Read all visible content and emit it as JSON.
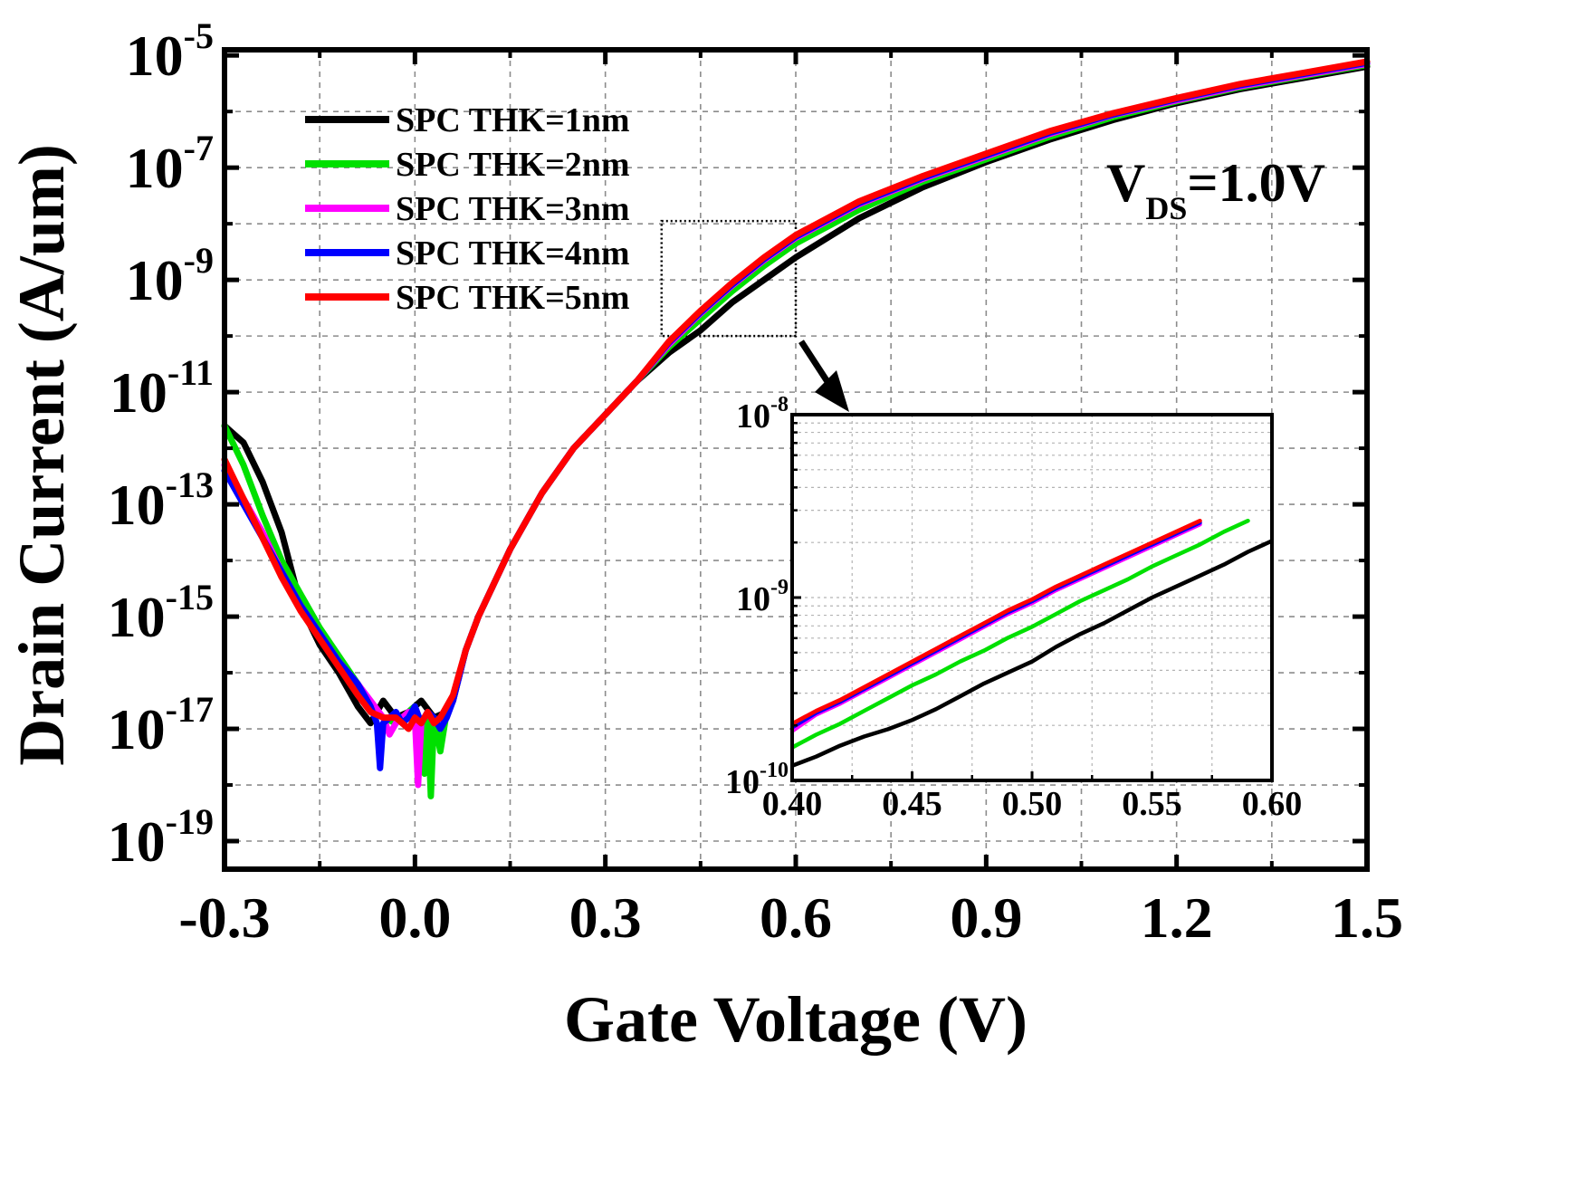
{
  "chart_data": {
    "type": "line",
    "title": "",
    "xlabel": "Gate Voltage (V)",
    "ylabel": "Drain Current (A/um)",
    "xlim": [
      -0.3,
      1.5
    ],
    "ylim_log10": [
      -19.5,
      -4.9
    ],
    "yscale": "log",
    "xticks": [
      "-0.3",
      "0.0",
      "0.3",
      "0.6",
      "0.9",
      "1.2",
      "1.5"
    ],
    "yticks": [
      {
        "base": "10",
        "exp": "-5",
        "log": -5
      },
      {
        "base": "10",
        "exp": "-7",
        "log": -7
      },
      {
        "base": "10",
        "exp": "-9",
        "log": -9
      },
      {
        "base": "10",
        "exp": "-11",
        "log": -11
      },
      {
        "base": "10",
        "exp": "-13",
        "log": -13
      },
      {
        "base": "10",
        "exp": "-15",
        "log": -15
      },
      {
        "base": "10",
        "exp": "-17",
        "log": -17
      },
      {
        "base": "10",
        "exp": "-19",
        "log": -19
      }
    ],
    "annotation": {
      "main": "V",
      "sub": "DS",
      "rest": "=1.0V"
    },
    "legend_position": "top-left",
    "series": [
      {
        "name": "SPC THK=1nm",
        "color": "#000000",
        "x": [
          -0.3,
          -0.27,
          -0.24,
          -0.21,
          -0.18,
          -0.15,
          -0.12,
          -0.09,
          -0.07,
          -0.05,
          -0.03,
          -0.01,
          0.01,
          0.03,
          0.05,
          0.06,
          0.08,
          0.1,
          0.15,
          0.2,
          0.25,
          0.3,
          0.35,
          0.4,
          0.45,
          0.5,
          0.55,
          0.6,
          0.7,
          0.8,
          0.9,
          1.0,
          1.1,
          1.2,
          1.3,
          1.4,
          1.5
        ],
        "y": [
          -11.6,
          -11.9,
          -12.6,
          -13.5,
          -14.8,
          -15.5,
          -16.0,
          -16.6,
          -16.9,
          -16.5,
          -16.8,
          -16.7,
          -16.5,
          -16.8,
          -16.7,
          -16.5,
          -15.6,
          -15.0,
          -13.8,
          -12.8,
          -12.0,
          -11.4,
          -10.8,
          -10.3,
          -9.9,
          -9.4,
          -9.0,
          -8.6,
          -7.9,
          -7.35,
          -6.9,
          -6.5,
          -6.15,
          -5.85,
          -5.6,
          -5.4,
          -5.2
        ]
      },
      {
        "name": "SPC THK=2nm",
        "color": "#00e000",
        "x": [
          -0.3,
          -0.27,
          -0.24,
          -0.21,
          -0.18,
          -0.15,
          -0.12,
          -0.09,
          -0.07,
          -0.05,
          -0.03,
          -0.01,
          0.0,
          0.01,
          0.015,
          0.02,
          0.025,
          0.03,
          0.04,
          0.05,
          0.06,
          0.08,
          0.1,
          0.15,
          0.2,
          0.25,
          0.3,
          0.35,
          0.4,
          0.45,
          0.5,
          0.55,
          0.6,
          0.7,
          0.8,
          0.9,
          1.0,
          1.1,
          1.2,
          1.3,
          1.4,
          1.5
        ],
        "y": [
          -11.6,
          -12.3,
          -13.2,
          -14.0,
          -14.6,
          -15.2,
          -15.7,
          -16.2,
          -16.6,
          -16.8,
          -16.9,
          -16.7,
          -16.6,
          -17.2,
          -17.8,
          -16.7,
          -18.2,
          -16.8,
          -17.4,
          -16.7,
          -16.5,
          -15.6,
          -15.0,
          -13.8,
          -12.8,
          -12.0,
          -11.4,
          -10.8,
          -10.2,
          -9.7,
          -9.2,
          -8.75,
          -8.35,
          -7.75,
          -7.25,
          -6.85,
          -6.45,
          -6.1,
          -5.82,
          -5.57,
          -5.37,
          -5.17
        ]
      },
      {
        "name": "SPC THK=3nm",
        "color": "#ff00ff",
        "x": [
          -0.3,
          -0.27,
          -0.24,
          -0.21,
          -0.18,
          -0.15,
          -0.12,
          -0.09,
          -0.07,
          -0.05,
          -0.04,
          -0.03,
          -0.02,
          -0.01,
          0.0,
          0.005,
          0.01,
          0.02,
          0.03,
          0.04,
          0.05,
          0.06,
          0.08,
          0.1,
          0.15,
          0.2,
          0.25,
          0.3,
          0.35,
          0.4,
          0.45,
          0.5,
          0.55,
          0.6,
          0.7,
          0.8,
          0.9,
          1.0,
          1.1,
          1.2,
          1.3,
          1.4,
          1.5
        ],
        "y": [
          -12.3,
          -12.9,
          -13.5,
          -14.2,
          -14.8,
          -15.3,
          -15.8,
          -16.2,
          -16.5,
          -16.8,
          -17.1,
          -16.9,
          -16.8,
          -16.7,
          -16.8,
          -18.0,
          -16.9,
          -16.7,
          -16.9,
          -16.8,
          -16.7,
          -16.5,
          -15.6,
          -15.0,
          -13.8,
          -12.8,
          -12.0,
          -11.4,
          -10.8,
          -10.15,
          -9.6,
          -9.1,
          -8.65,
          -8.25,
          -7.65,
          -7.2,
          -6.8,
          -6.4,
          -6.06,
          -5.8,
          -5.55,
          -5.35,
          -5.15
        ]
      },
      {
        "name": "SPC THK=4nm",
        "color": "#0000ff",
        "x": [
          -0.3,
          -0.27,
          -0.24,
          -0.21,
          -0.18,
          -0.15,
          -0.12,
          -0.09,
          -0.07,
          -0.06,
          -0.055,
          -0.05,
          -0.04,
          -0.03,
          -0.02,
          -0.01,
          0.0,
          0.01,
          0.02,
          0.03,
          0.04,
          0.05,
          0.06,
          0.08,
          0.1,
          0.15,
          0.2,
          0.25,
          0.3,
          0.35,
          0.4,
          0.45,
          0.5,
          0.55,
          0.6,
          0.7,
          0.8,
          0.9,
          1.0,
          1.1,
          1.2,
          1.3,
          1.4,
          1.5
        ],
        "y": [
          -12.4,
          -13.0,
          -13.6,
          -14.2,
          -14.8,
          -15.3,
          -15.8,
          -16.2,
          -16.6,
          -16.9,
          -17.7,
          -16.9,
          -16.8,
          -16.7,
          -16.9,
          -16.8,
          -16.6,
          -16.9,
          -16.7,
          -16.8,
          -17.0,
          -16.8,
          -16.5,
          -15.6,
          -15.0,
          -13.8,
          -12.8,
          -12.0,
          -11.4,
          -10.8,
          -10.12,
          -9.58,
          -9.08,
          -8.63,
          -8.23,
          -7.63,
          -7.18,
          -6.78,
          -6.38,
          -6.05,
          -5.78,
          -5.53,
          -5.33,
          -5.13
        ]
      },
      {
        "name": "SPC THK=5nm",
        "color": "#ff0000",
        "x": [
          -0.3,
          -0.27,
          -0.24,
          -0.21,
          -0.18,
          -0.15,
          -0.12,
          -0.09,
          -0.07,
          -0.05,
          -0.03,
          -0.02,
          -0.01,
          0.0,
          0.01,
          0.02,
          0.03,
          0.04,
          0.05,
          0.06,
          0.08,
          0.1,
          0.15,
          0.2,
          0.25,
          0.3,
          0.35,
          0.4,
          0.45,
          0.5,
          0.55,
          0.6,
          0.7,
          0.8,
          0.9,
          1.0,
          1.1,
          1.2,
          1.3,
          1.4,
          1.5
        ],
        "y": [
          -12.2,
          -12.9,
          -13.6,
          -14.3,
          -14.9,
          -15.4,
          -15.9,
          -16.4,
          -16.7,
          -16.8,
          -16.8,
          -16.9,
          -17.0,
          -16.8,
          -16.9,
          -16.7,
          -16.9,
          -16.8,
          -16.6,
          -16.4,
          -15.6,
          -15.0,
          -13.8,
          -12.8,
          -12.0,
          -11.4,
          -10.8,
          -10.1,
          -9.55,
          -9.05,
          -8.6,
          -8.2,
          -7.6,
          -7.15,
          -6.75,
          -6.35,
          -6.03,
          -5.76,
          -5.51,
          -5.31,
          -5.11
        ]
      }
    ],
    "inset": {
      "xlim": [
        0.4,
        0.6
      ],
      "ylim_log10": [
        -10,
        -8
      ],
      "xticks": [
        "0.40",
        "0.45",
        "0.50",
        "0.55",
        "0.60"
      ],
      "yticks": [
        {
          "base": "10",
          "exp": "-8",
          "log": -8
        },
        {
          "base": "10",
          "exp": "-9",
          "log": -9
        },
        {
          "base": "10",
          "exp": "-10",
          "log": -10
        }
      ],
      "series": [
        {
          "name": "SPC THK=1nm",
          "color": "#000000",
          "x": [
            0.4,
            0.41,
            0.42,
            0.43,
            0.44,
            0.45,
            0.46,
            0.47,
            0.48,
            0.49,
            0.5,
            0.51,
            0.52,
            0.53,
            0.54,
            0.55,
            0.56,
            0.57,
            0.58,
            0.59,
            0.6
          ],
          "y": [
            -9.92,
            -9.87,
            -9.81,
            -9.76,
            -9.72,
            -9.67,
            -9.61,
            -9.54,
            -9.47,
            -9.41,
            -9.35,
            -9.27,
            -9.2,
            -9.14,
            -9.07,
            -9.0,
            -8.94,
            -8.88,
            -8.82,
            -8.75,
            -8.69
          ]
        },
        {
          "name": "SPC THK=2nm",
          "color": "#00e000",
          "x": [
            0.4,
            0.41,
            0.42,
            0.43,
            0.44,
            0.45,
            0.46,
            0.47,
            0.48,
            0.49,
            0.5,
            0.51,
            0.52,
            0.53,
            0.54,
            0.55,
            0.56,
            0.57,
            0.58,
            0.59
          ],
          "y": [
            -9.82,
            -9.75,
            -9.69,
            -9.62,
            -9.55,
            -9.48,
            -9.42,
            -9.35,
            -9.29,
            -9.22,
            -9.16,
            -9.09,
            -9.02,
            -8.96,
            -8.9,
            -8.83,
            -8.77,
            -8.71,
            -8.64,
            -8.58
          ]
        },
        {
          "name": "SPC THK=3nm",
          "color": "#ff00ff",
          "x": [
            0.4,
            0.41,
            0.42,
            0.43,
            0.44,
            0.45,
            0.46,
            0.47,
            0.48,
            0.49,
            0.5,
            0.51,
            0.52,
            0.53,
            0.54,
            0.55,
            0.56,
            0.57
          ],
          "y": [
            -9.73,
            -9.64,
            -9.58,
            -9.51,
            -9.44,
            -9.37,
            -9.3,
            -9.23,
            -9.16,
            -9.09,
            -9.03,
            -8.96,
            -8.9,
            -8.84,
            -8.78,
            -8.72,
            -8.66,
            -8.6
          ]
        },
        {
          "name": "SPC THK=4nm",
          "color": "#0000ff",
          "x": [
            0.4,
            0.41,
            0.42,
            0.43,
            0.44,
            0.45,
            0.46,
            0.47,
            0.48,
            0.49,
            0.5,
            0.51,
            0.52,
            0.53,
            0.54,
            0.55,
            0.56,
            0.57
          ],
          "y": [
            -9.71,
            -9.63,
            -9.57,
            -9.5,
            -9.43,
            -9.36,
            -9.29,
            -9.22,
            -9.15,
            -9.08,
            -9.02,
            -8.95,
            -8.89,
            -8.83,
            -8.77,
            -8.71,
            -8.65,
            -8.59
          ]
        },
        {
          "name": "SPC THK=5nm",
          "color": "#ff0000",
          "x": [
            0.4,
            0.41,
            0.42,
            0.43,
            0.44,
            0.45,
            0.46,
            0.47,
            0.48,
            0.49,
            0.5,
            0.51,
            0.52,
            0.53,
            0.54,
            0.55,
            0.56,
            0.57
          ],
          "y": [
            -9.69,
            -9.62,
            -9.56,
            -9.49,
            -9.42,
            -9.35,
            -9.28,
            -9.21,
            -9.14,
            -9.07,
            -9.01,
            -8.94,
            -8.88,
            -8.82,
            -8.76,
            -8.7,
            -8.64,
            -8.58
          ]
        }
      ]
    }
  }
}
